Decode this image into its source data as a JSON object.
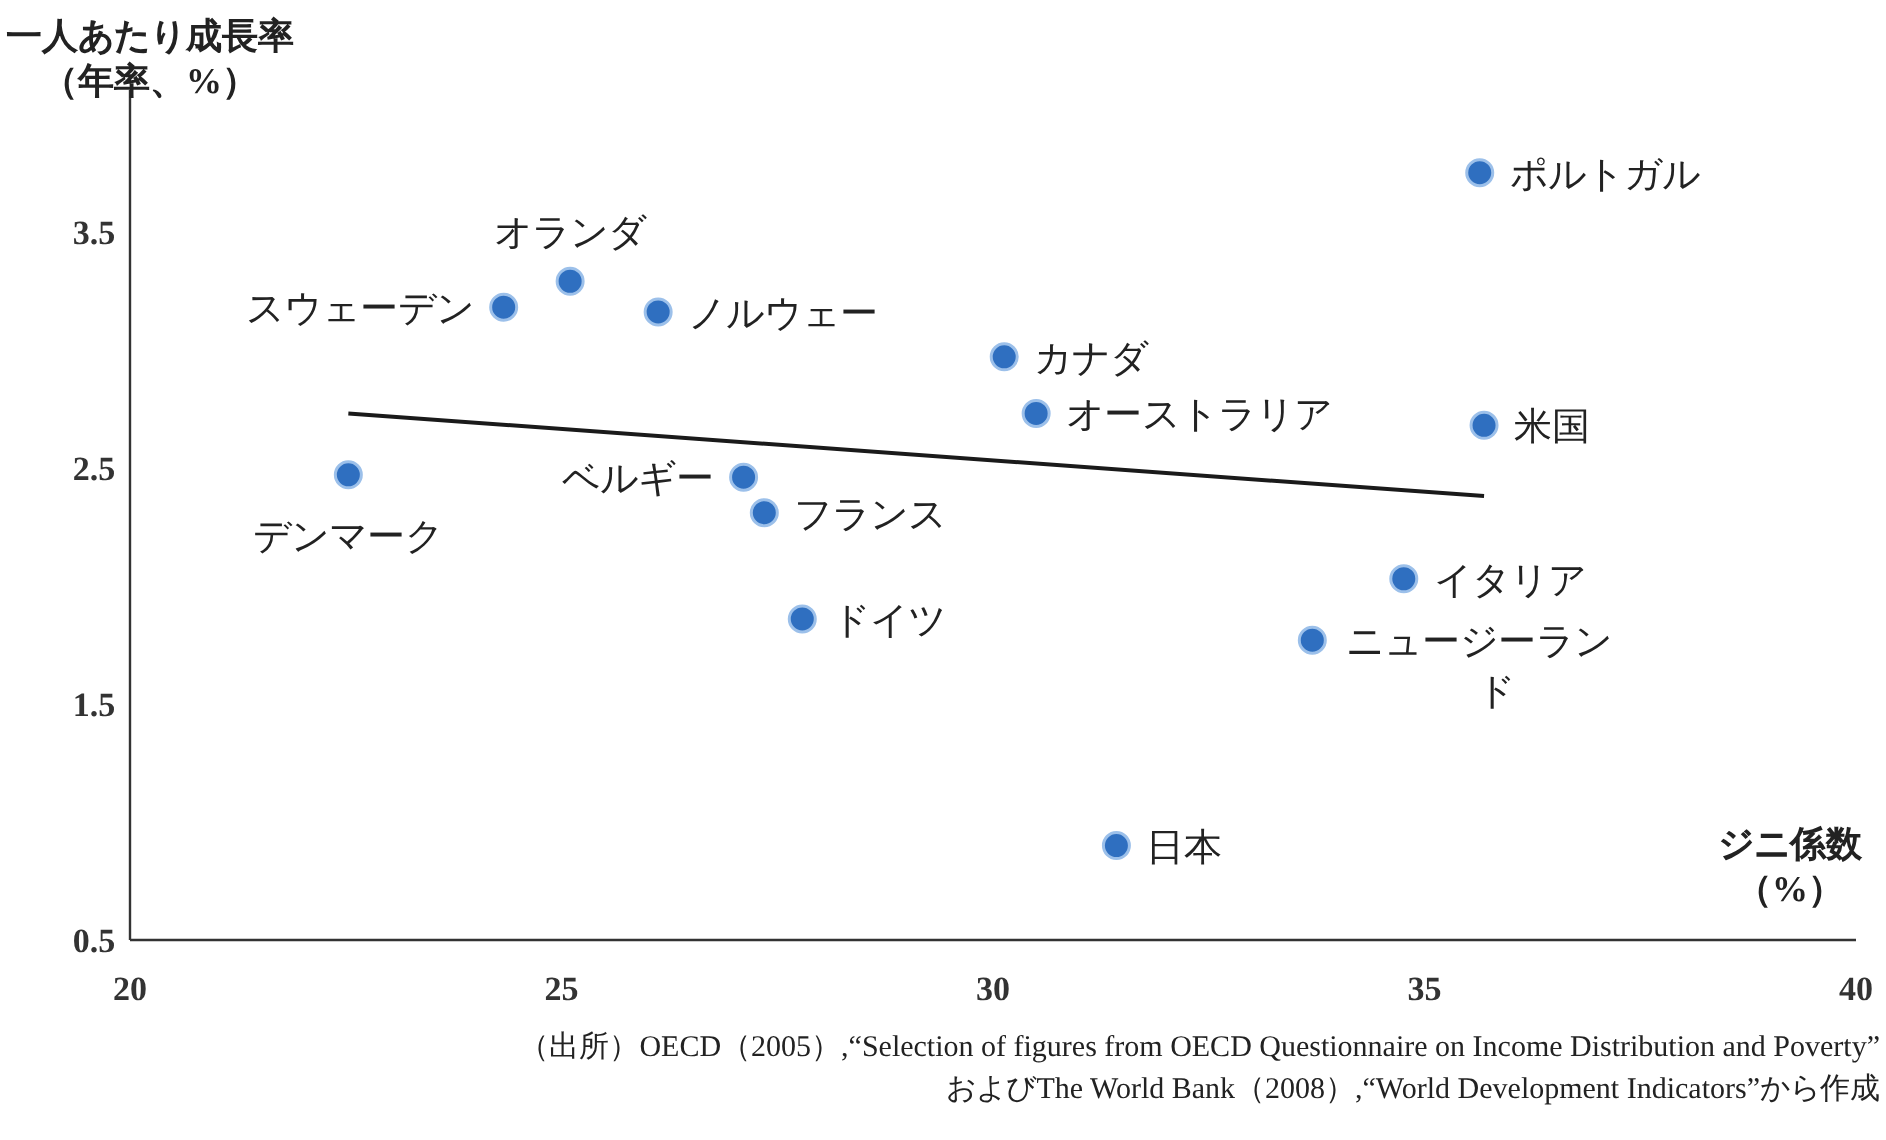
{
  "chart_data": {
    "type": "scatter",
    "ylabel": "一人あたり成長率（年率、%）",
    "xlabel": "ジニ係数（%）",
    "xlim": [
      20,
      40
    ],
    "xticks": [
      20,
      25,
      30,
      35,
      40
    ],
    "ylim": [
      0.5,
      4.1
    ],
    "yticks": [
      0.5,
      1.5,
      2.5,
      3.5
    ],
    "grid": false,
    "series": [
      {
        "marker": "circle",
        "color": "#2f6fc0",
        "x": [
          35.64,
          25.1,
          24.33,
          26.12,
          30.13,
          30.5,
          35.69,
          22.53,
          27.11,
          27.35,
          34.76,
          33.7,
          27.79,
          31.43
        ],
        "values": [
          3.75,
          3.29,
          3.18,
          3.16,
          2.97,
          2.73,
          2.68,
          2.47,
          2.46,
          2.31,
          2.03,
          1.77,
          1.86,
          0.9
        ]
      },
      {
        "type": "line",
        "color": "#1a1a1a",
        "x": [
          22.53,
          35.69
        ],
        "values": [
          2.73,
          2.38
        ]
      }
    ],
    "annotations": [
      {
        "text": "ポルトガル",
        "x": 35.64,
        "y": 3.75
      },
      {
        "text": "オランダ",
        "x": 25.1,
        "y": 3.29
      },
      {
        "text": "スウェーデン",
        "x": 24.33,
        "y": 3.18
      },
      {
        "text": "ノルウェー",
        "x": 26.12,
        "y": 3.16
      },
      {
        "text": "カナダ",
        "x": 30.13,
        "y": 2.97
      },
      {
        "text": "オーストラリア",
        "x": 30.5,
        "y": 2.73
      },
      {
        "text": "米国",
        "x": 35.69,
        "y": 2.68
      },
      {
        "text": "デンマーク",
        "x": 22.53,
        "y": 2.47
      },
      {
        "text": "ベルギー",
        "x": 27.11,
        "y": 2.46
      },
      {
        "text": "フランス",
        "x": 27.35,
        "y": 2.31
      },
      {
        "text": "イタリア",
        "x": 34.76,
        "y": 2.03
      },
      {
        "text": "ニュージーランド",
        "x": 33.7,
        "y": 1.77
      },
      {
        "text": "ドイツ",
        "x": 27.79,
        "y": 1.86
      },
      {
        "text": "日本",
        "x": 31.43,
        "y": 0.9
      },
      "（出所）OECD（2005）,“Selection of figures from OECD Questionnaire on Income Distribution and Poverty”",
      "およびThe World Bank（2008）,“World Development Indicators”から作成"
    ]
  }
}
